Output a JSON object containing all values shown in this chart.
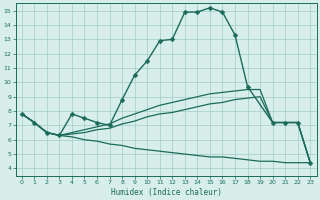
{
  "xlabel": "Humidex (Indice chaleur)",
  "background_color": "#d8eeea",
  "grid_color": "#a0ccC4",
  "line_color": "#1a6b5a",
  "xlim": [
    -0.5,
    23.5
  ],
  "ylim": [
    3.5,
    15.5
  ],
  "xticks": [
    0,
    1,
    2,
    3,
    4,
    5,
    6,
    7,
    8,
    9,
    10,
    11,
    12,
    13,
    14,
    15,
    16,
    17,
    18,
    19,
    20,
    21,
    22,
    23
  ],
  "yticks": [
    4,
    5,
    6,
    7,
    8,
    9,
    10,
    11,
    12,
    13,
    14,
    15
  ],
  "series": [
    {
      "x": [
        0,
        1,
        2,
        3,
        4,
        5,
        6,
        7,
        8,
        9,
        10,
        11,
        12,
        13,
        14,
        15,
        16,
        17,
        18,
        20,
        21,
        22,
        23
      ],
      "y": [
        7.8,
        7.2,
        6.5,
        6.3,
        7.8,
        7.5,
        7.2,
        7.0,
        8.8,
        10.5,
        11.5,
        12.9,
        13.0,
        14.9,
        14.9,
        15.2,
        14.9,
        13.3,
        9.7,
        7.2,
        7.2,
        7.2,
        4.4
      ],
      "has_marker": true,
      "markersize": 2.5,
      "linewidth": 1.0
    },
    {
      "x": [
        0,
        1,
        2,
        3,
        4,
        5,
        6,
        7,
        8,
        9,
        10,
        11,
        12,
        13,
        14,
        15,
        16,
        17,
        18,
        19,
        20,
        21,
        22,
        23
      ],
      "y": [
        7.8,
        7.2,
        6.5,
        6.3,
        6.5,
        6.7,
        6.9,
        7.1,
        7.5,
        7.8,
        8.1,
        8.4,
        8.6,
        8.8,
        9.0,
        9.2,
        9.3,
        9.4,
        9.5,
        9.5,
        7.2,
        7.2,
        7.2,
        4.4
      ],
      "has_marker": false,
      "linewidth": 0.9
    },
    {
      "x": [
        0,
        1,
        2,
        3,
        4,
        5,
        6,
        7,
        8,
        9,
        10,
        11,
        12,
        13,
        14,
        15,
        16,
        17,
        18,
        19,
        20,
        21,
        22,
        23
      ],
      "y": [
        7.8,
        7.2,
        6.5,
        6.3,
        6.2,
        6.0,
        5.9,
        5.7,
        5.6,
        5.4,
        5.3,
        5.2,
        5.1,
        5.0,
        4.9,
        4.8,
        4.8,
        4.7,
        4.6,
        4.5,
        4.5,
        4.4,
        4.4,
        4.4
      ],
      "has_marker": false,
      "linewidth": 0.9
    },
    {
      "x": [
        0,
        1,
        2,
        3,
        4,
        5,
        6,
        7,
        8,
        9,
        10,
        11,
        12,
        13,
        14,
        15,
        16,
        17,
        18,
        19,
        20,
        21,
        22,
        23
      ],
      "y": [
        7.8,
        7.2,
        6.5,
        6.3,
        6.4,
        6.5,
        6.7,
        6.8,
        7.1,
        7.3,
        7.6,
        7.8,
        7.9,
        8.1,
        8.3,
        8.5,
        8.6,
        8.8,
        8.9,
        9.0,
        7.2,
        7.2,
        7.2,
        4.4
      ],
      "has_marker": false,
      "linewidth": 0.9
    }
  ]
}
